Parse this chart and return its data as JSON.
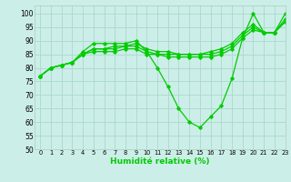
{
  "xlabel": "Humidité relative (%)",
  "bg_color": "#cceee8",
  "grid_color": "#aad8cc",
  "line_color": "#00cc00",
  "xlim": [
    -0.5,
    23
  ],
  "ylim": [
    50,
    103
  ],
  "yticks": [
    50,
    55,
    60,
    65,
    70,
    75,
    80,
    85,
    90,
    95,
    100
  ],
  "xticks": [
    0,
    1,
    2,
    3,
    4,
    5,
    6,
    7,
    8,
    9,
    10,
    11,
    12,
    13,
    14,
    15,
    16,
    17,
    18,
    19,
    20,
    21,
    22,
    23
  ],
  "series": [
    [
      77,
      80,
      81,
      82,
      86,
      89,
      89,
      89,
      89,
      90,
      86,
      80,
      73,
      65,
      60,
      58,
      62,
      66,
      76,
      91,
      100,
      93,
      93,
      100
    ],
    [
      77,
      80,
      81,
      82,
      85,
      87,
      87,
      88,
      88,
      89,
      87,
      86,
      86,
      85,
      85,
      85,
      86,
      87,
      89,
      93,
      96,
      93,
      93,
      98
    ],
    [
      77,
      80,
      81,
      82,
      85,
      87,
      87,
      87,
      88,
      88,
      86,
      85,
      85,
      85,
      85,
      85,
      85,
      86,
      88,
      92,
      95,
      93,
      93,
      97
    ],
    [
      77,
      80,
      81,
      82,
      85,
      86,
      86,
      86,
      87,
      87,
      85,
      85,
      84,
      84,
      84,
      84,
      84,
      85,
      87,
      91,
      94,
      93,
      93,
      97
    ]
  ]
}
